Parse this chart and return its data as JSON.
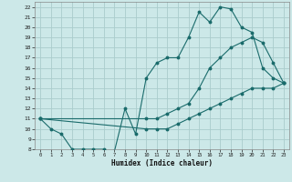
{
  "xlabel": "Humidex (Indice chaleur)",
  "background_color": "#cce8e8",
  "grid_color": "#aacccc",
  "line_color": "#1a6b6b",
  "xlim": [
    -0.5,
    23.5
  ],
  "ylim": [
    8,
    22.5
  ],
  "xticks": [
    0,
    1,
    2,
    3,
    4,
    5,
    6,
    7,
    8,
    9,
    10,
    11,
    12,
    13,
    14,
    15,
    16,
    17,
    18,
    19,
    20,
    21,
    22,
    23
  ],
  "yticks": [
    8,
    9,
    10,
    11,
    12,
    13,
    14,
    15,
    16,
    17,
    18,
    19,
    20,
    21,
    22
  ],
  "line1_x": [
    0,
    1,
    2,
    3,
    4,
    5,
    6,
    7,
    8,
    9,
    10,
    11,
    12,
    13,
    14,
    15,
    16,
    17,
    18,
    19,
    20,
    21,
    22,
    23
  ],
  "line1_y": [
    11,
    10,
    9.5,
    8,
    8,
    8,
    8,
    7.8,
    12,
    9.5,
    15,
    16.5,
    17,
    17,
    19,
    21.5,
    20.5,
    22,
    21.8,
    20,
    19.5,
    16,
    15,
    14.5
  ],
  "line2_x": [
    0,
    10,
    11,
    12,
    13,
    14,
    15,
    16,
    17,
    18,
    19,
    20,
    21,
    22,
    23
  ],
  "line2_y": [
    11,
    11,
    11,
    11.5,
    12,
    12.5,
    14,
    16,
    17,
    18,
    18.5,
    19,
    18.5,
    16.5,
    14.5
  ],
  "line3_x": [
    0,
    10,
    11,
    12,
    13,
    14,
    15,
    16,
    17,
    18,
    19,
    20,
    21,
    22,
    23
  ],
  "line3_y": [
    11,
    10,
    10,
    10,
    10.5,
    11,
    11.5,
    12,
    12.5,
    13,
    13.5,
    14,
    14,
    14,
    14.5
  ]
}
